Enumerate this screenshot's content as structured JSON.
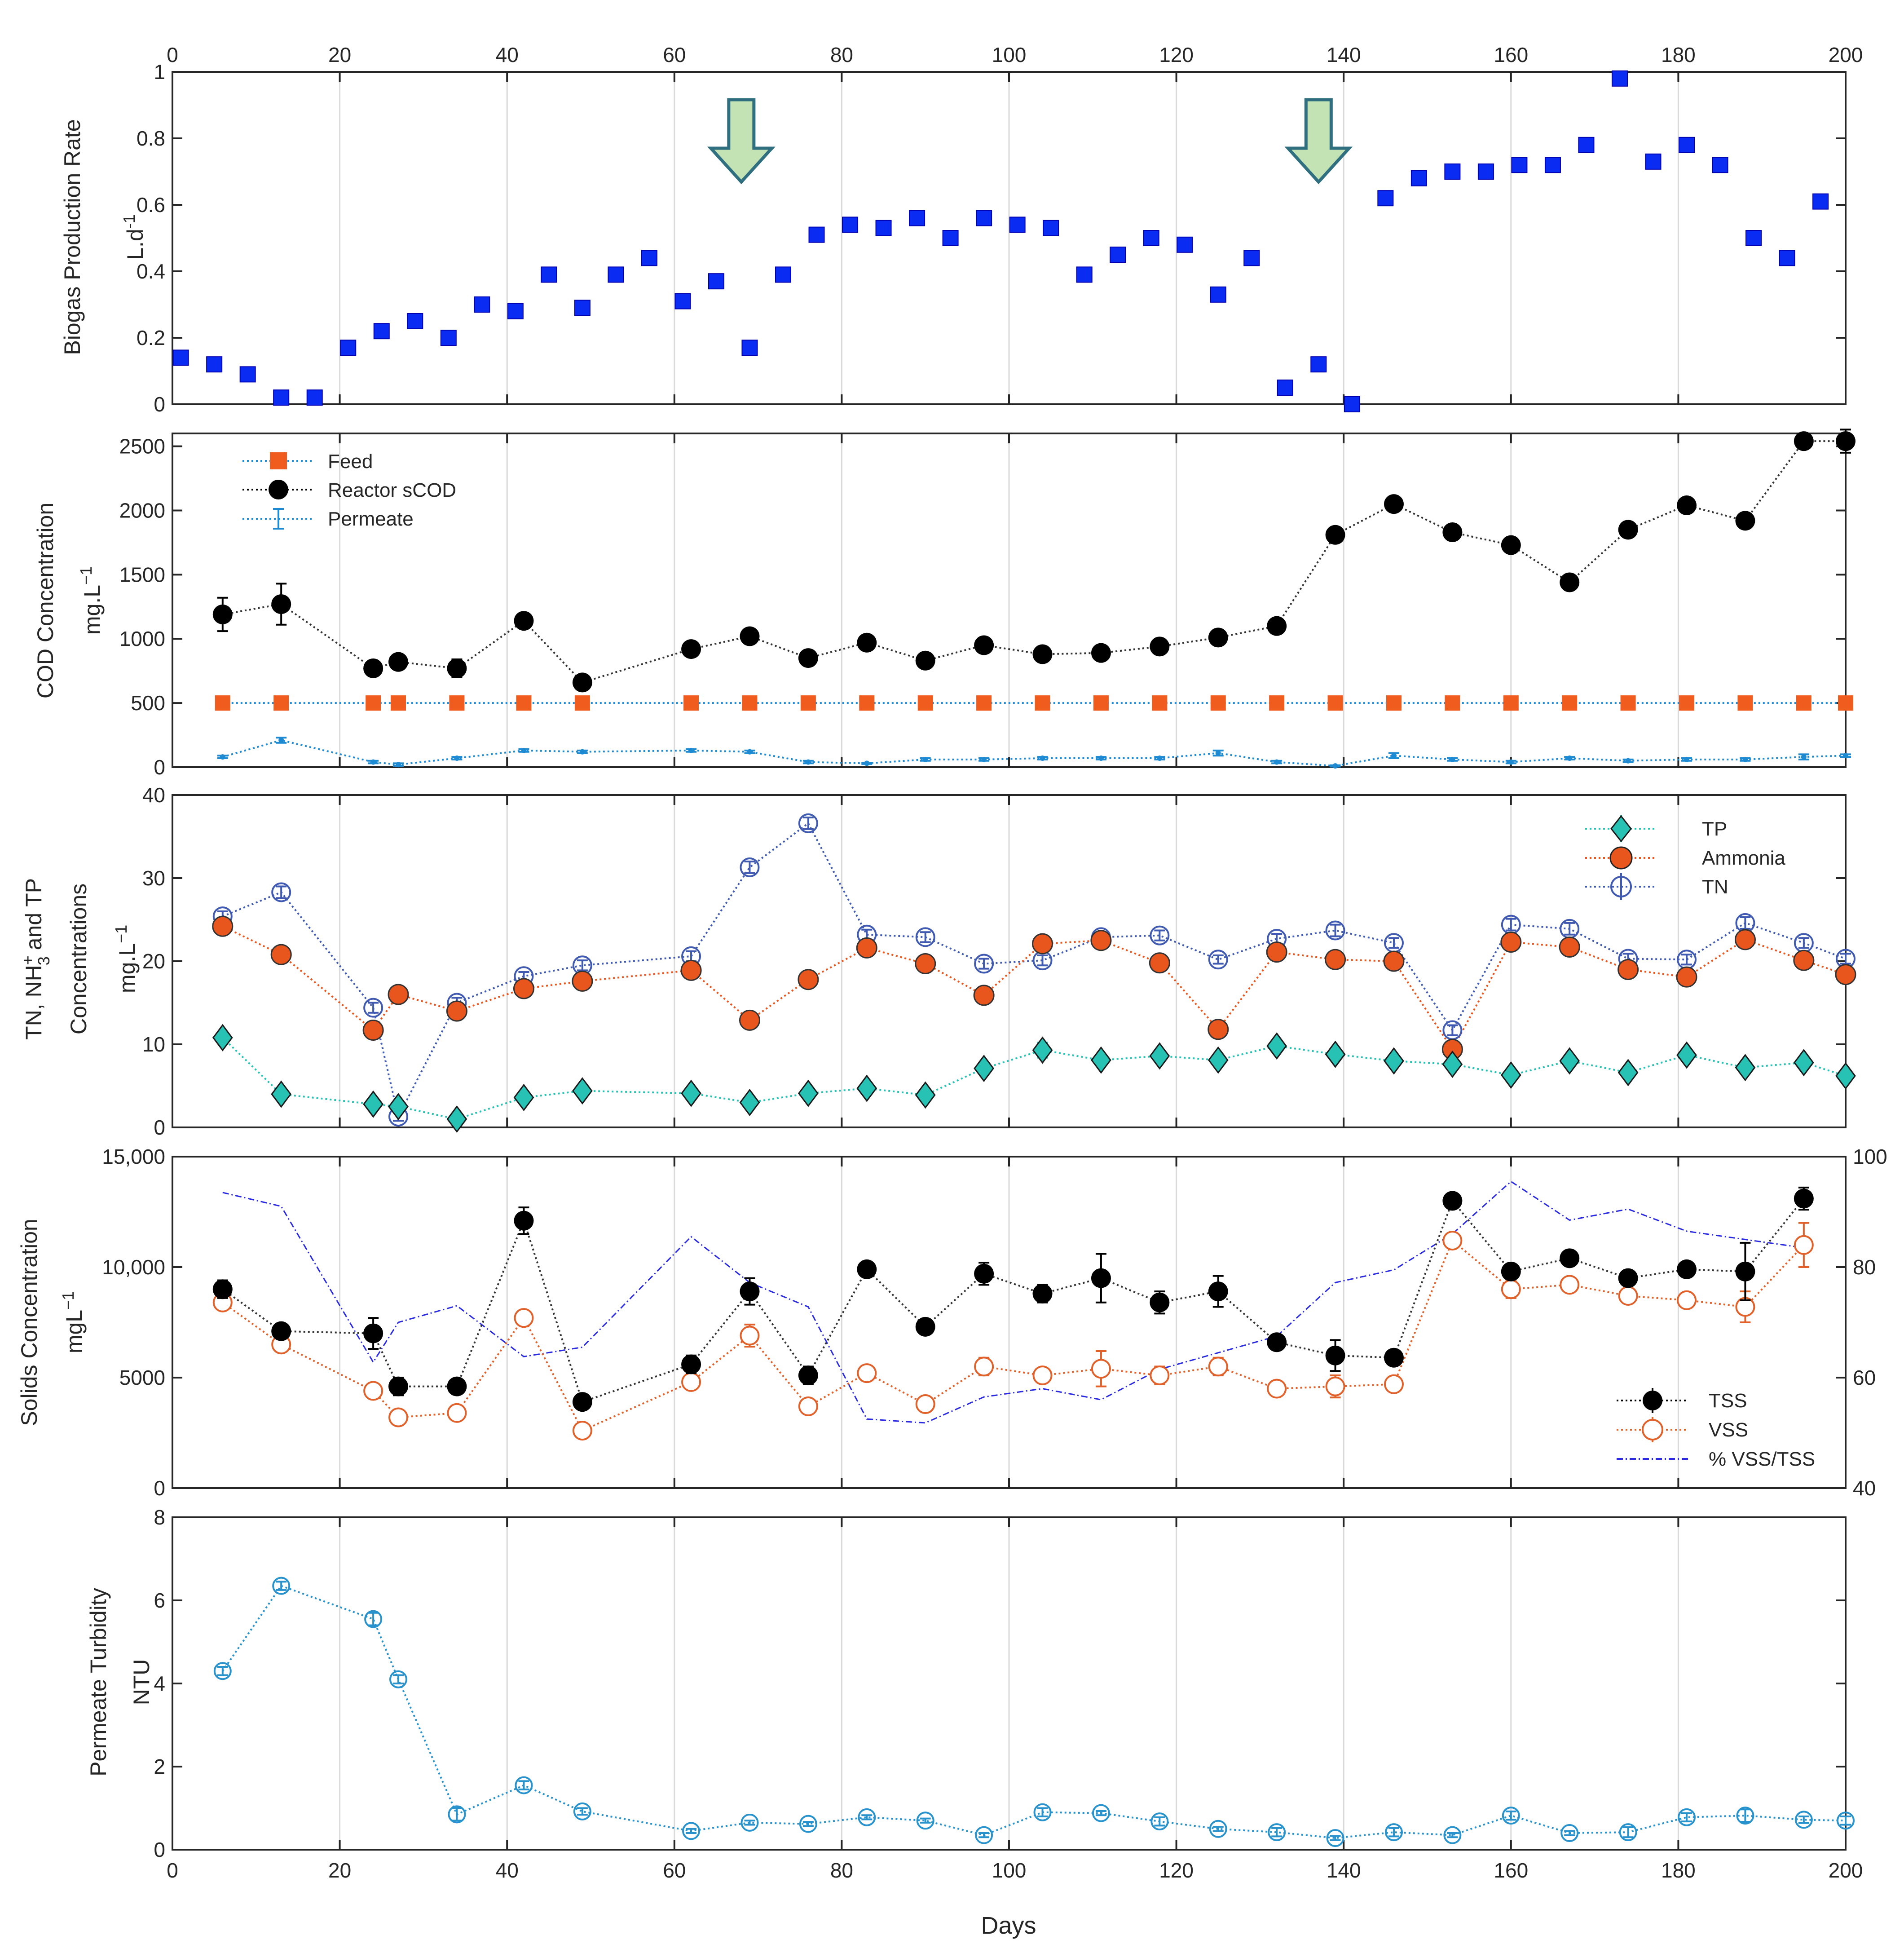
{
  "chart_data": [
    {
      "id": "biogas",
      "type": "scatter",
      "ylabel_line1": "Biogas Production Rate",
      "ylabel_line2_base": "L.d",
      "ylabel_line2_sup": "-1",
      "xlim": [
        0,
        200
      ],
      "ylim": [
        0,
        1
      ],
      "x_ticks": [
        "0",
        "20",
        "40",
        "60",
        "80",
        "100",
        "120",
        "140",
        "160",
        "180",
        "200"
      ],
      "y_ticks": [
        "0",
        "0.2",
        "0.4",
        "0.6",
        "0.8",
        "1"
      ],
      "annotations": [
        {
          "type": "arrow-down",
          "x": 68,
          "color": "#c3e3b5"
        },
        {
          "type": "arrow-down",
          "x": 137,
          "color": "#c3e3b5"
        }
      ],
      "series": [
        {
          "name": "Biogas",
          "color": "#0a2bf2",
          "x": [
            1,
            5,
            9,
            13,
            17,
            21,
            25,
            29,
            33,
            37,
            41,
            45,
            49,
            53,
            57,
            61,
            65,
            69,
            73,
            77,
            81,
            85,
            89,
            93,
            97,
            101,
            105,
            109,
            113,
            117,
            121,
            125,
            129,
            133,
            137,
            141,
            145,
            149,
            153,
            157,
            161,
            165,
            169,
            173,
            177,
            181,
            185,
            189,
            193,
            197
          ],
          "y": [
            0.14,
            0.12,
            0.09,
            0.02,
            0.02,
            0.17,
            0.22,
            0.25,
            0.2,
            0.3,
            0.28,
            0.39,
            0.29,
            0.39,
            0.44,
            0.31,
            0.37,
            0.17,
            0.39,
            0.51,
            0.54,
            0.53,
            0.56,
            0.5,
            0.56,
            0.54,
            0.53,
            0.39,
            0.45,
            0.5,
            0.48,
            0.33,
            0.44,
            0.05,
            0.12,
            0.0,
            0.62,
            0.68,
            0.7,
            0.7,
            0.72,
            0.72,
            0.78,
            0.98,
            0.73,
            0.78,
            0.72,
            0.5,
            0.44,
            0.61
          ]
        }
      ]
    },
    {
      "id": "cod",
      "type": "line",
      "ylabel_line1": "COD Concentration",
      "ylabel_line2_base": "mg.L",
      "ylabel_line2_sup": "−1",
      "xlim": [
        0,
        200
      ],
      "ylim": [
        0,
        2600
      ],
      "y_ticks": [
        "0",
        "500",
        "1000",
        "1500",
        "2000",
        "2500"
      ],
      "legend": [
        "Feed",
        "Reactor sCOD",
        "Permeate"
      ],
      "series": [
        {
          "name": "Feed",
          "color": "#f05c1e",
          "x": [
            6,
            13,
            24,
            27,
            34,
            42,
            49,
            62,
            69,
            76,
            83,
            90,
            97,
            104,
            111,
            118,
            125,
            132,
            139,
            146,
            153,
            160,
            167,
            174,
            181,
            188,
            195,
            200
          ],
          "y": [
            500,
            500,
            500,
            500,
            500,
            500,
            500,
            500,
            500,
            500,
            500,
            500,
            500,
            500,
            500,
            500,
            500,
            500,
            500,
            500,
            500,
            500,
            500,
            500,
            500,
            500,
            500,
            500
          ]
        },
        {
          "name": "Reactor sCOD",
          "color": "#000000",
          "x": [
            6,
            13,
            24,
            27,
            34,
            42,
            49,
            62,
            69,
            76,
            83,
            90,
            97,
            104,
            111,
            118,
            125,
            132,
            139,
            146,
            153,
            160,
            167,
            174,
            181,
            188,
            195,
            200
          ],
          "y": [
            1190,
            1270,
            770,
            820,
            770,
            1140,
            660,
            920,
            1020,
            850,
            970,
            830,
            950,
            880,
            890,
            940,
            1010,
            1100,
            1810,
            2050,
            1830,
            1730,
            1440,
            1850,
            2040,
            1920,
            2540,
            2540
          ],
          "err": [
            130,
            160,
            40,
            50,
            70,
            40,
            30,
            30,
            40,
            30,
            40,
            30,
            30,
            30,
            30,
            30,
            30,
            30,
            40,
            40,
            30,
            30,
            40,
            40,
            40,
            30,
            60,
            90
          ]
        },
        {
          "name": "Permeate",
          "color": "#1e8ad2",
          "x": [
            6,
            13,
            24,
            27,
            34,
            42,
            49,
            62,
            69,
            76,
            83,
            90,
            97,
            104,
            111,
            118,
            125,
            132,
            139,
            146,
            153,
            160,
            167,
            174,
            181,
            188,
            195,
            200
          ],
          "y": [
            80,
            210,
            40,
            20,
            70,
            130,
            120,
            130,
            120,
            40,
            30,
            60,
            60,
            70,
            70,
            70,
            110,
            40,
            10,
            90,
            60,
            40,
            70,
            50,
            60,
            60,
            80,
            90
          ],
          "err": [
            10,
            20,
            10,
            10,
            10,
            10,
            10,
            10,
            10,
            10,
            5,
            10,
            10,
            10,
            10,
            10,
            20,
            10,
            5,
            20,
            10,
            10,
            10,
            10,
            10,
            10,
            20,
            10
          ]
        }
      ]
    },
    {
      "id": "nutrients",
      "type": "line",
      "ylabel_line1_a": "TN, NH",
      "ylabel_line1_sub": "3",
      "ylabel_line1_sup": "+",
      "ylabel_line1_b": "and TP",
      "ylabel_line2": "Concentrations",
      "ylabel_line3_base": "mg.L",
      "ylabel_line3_sup": "−1",
      "xlim": [
        0,
        200
      ],
      "ylim": [
        0,
        40
      ],
      "y_ticks": [
        "0",
        "10",
        "20",
        "30",
        "40"
      ],
      "legend": [
        "TP",
        "Ammonia",
        "TN"
      ],
      "series": [
        {
          "name": "TP",
          "color": "#27c2b4",
          "x": [
            6,
            13,
            24,
            27,
            34,
            42,
            49,
            62,
            69,
            76,
            83,
            90,
            97,
            104,
            111,
            118,
            125,
            132,
            139,
            146,
            153,
            160,
            167,
            174,
            181,
            188,
            195,
            200
          ],
          "y": [
            10.8,
            4.0,
            2.8,
            2.5,
            1.0,
            3.6,
            4.4,
            4.1,
            3.0,
            4.1,
            4.7,
            3.9,
            7.1,
            9.3,
            8.1,
            8.6,
            8.1,
            9.8,
            8.8,
            8.0,
            7.6,
            6.3,
            8.0,
            6.6,
            8.7,
            7.2,
            7.8,
            6.2
          ],
          "err": [
            0.5,
            0.4,
            0.3,
            0.3,
            0.2,
            0.5,
            0.4,
            0.3,
            0.3,
            0.3,
            0.4,
            0.3,
            0.5,
            0.9,
            0.5,
            0.4,
            0.5,
            0.5,
            0.4,
            0.5,
            0.6,
            0.4,
            0.5,
            0.4,
            0.5,
            0.4,
            0.5,
            0.4
          ]
        },
        {
          "name": "Ammonia",
          "color": "#e8561e",
          "x": [
            6,
            13,
            24,
            27,
            34,
            42,
            49,
            62,
            69,
            76,
            83,
            90,
            97,
            104,
            111,
            118,
            125,
            132,
            139,
            146,
            153,
            160,
            167,
            174,
            181,
            188,
            195,
            200
          ],
          "y": [
            24.2,
            20.8,
            11.7,
            16.0,
            14.0,
            16.7,
            17.6,
            18.9,
            12.9,
            17.8,
            21.6,
            19.7,
            15.9,
            22.1,
            22.5,
            19.8,
            11.8,
            21.1,
            20.2,
            20.0,
            9.4,
            22.3,
            21.7,
            19.0,
            18.1,
            22.6,
            20.1,
            18.4
          ]
        },
        {
          "name": "TN",
          "color": "#3f5ab0",
          "x": [
            6,
            13,
            24,
            27,
            34,
            42,
            49,
            62,
            69,
            76,
            83,
            90,
            97,
            104,
            111,
            118,
            125,
            132,
            139,
            146,
            153,
            160,
            167,
            174,
            181,
            188,
            195,
            200
          ],
          "y": [
            25.4,
            28.3,
            14.4,
            1.3,
            15.0,
            18.2,
            19.5,
            20.6,
            31.3,
            36.6,
            23.2,
            22.9,
            19.7,
            20.1,
            22.9,
            23.1,
            20.2,
            22.7,
            23.7,
            22.2,
            11.7,
            24.4,
            23.9,
            20.3,
            20.2,
            24.6,
            22.2,
            20.3
          ],
          "err": [
            0.6,
            0.7,
            0.6,
            0.5,
            0.6,
            0.5,
            0.6,
            0.6,
            0.7,
            0.7,
            0.6,
            0.6,
            0.6,
            0.6,
            0.6,
            0.6,
            0.5,
            0.6,
            0.7,
            0.6,
            0.6,
            0.7,
            0.7,
            0.6,
            0.6,
            0.7,
            0.6,
            0.6
          ]
        }
      ]
    },
    {
      "id": "solids",
      "type": "line",
      "ylabel_line1": "Solids Concentration",
      "ylabel_line2_base": "mgL",
      "ylabel_line2_sup": "−1",
      "xlim": [
        0,
        200
      ],
      "ylim": [
        0,
        15000
      ],
      "y2lim": [
        40,
        100
      ],
      "y_ticks": [
        "0",
        "5000",
        "10,000",
        "15,000"
      ],
      "y2_ticks": [
        "40",
        "60",
        "80",
        "100"
      ],
      "legend": [
        "TSS",
        "VSS",
        "% VSS/TSS"
      ],
      "series": [
        {
          "name": "TSS",
          "color": "#000000",
          "x": [
            6,
            13,
            24,
            27,
            34,
            42,
            49,
            62,
            69,
            76,
            83,
            90,
            97,
            104,
            111,
            118,
            125,
            132,
            139,
            146,
            153,
            160,
            167,
            174,
            181,
            188,
            195
          ],
          "y": [
            9000,
            7100,
            7000,
            4600,
            4600,
            12100,
            3900,
            5600,
            8900,
            5100,
            9900,
            7300,
            9700,
            8800,
            9500,
            8400,
            8900,
            6600,
            6000,
            5900,
            13000,
            9800,
            10400,
            9500,
            9900,
            9800,
            13100
          ],
          "err": [
            400,
            200,
            700,
            400,
            200,
            600,
            200,
            400,
            600,
            400,
            200,
            200,
            500,
            400,
            1100,
            500,
            700,
            200,
            700,
            200,
            200,
            300,
            200,
            300,
            200,
            1300,
            500
          ]
        },
        {
          "name": "VSS",
          "color": "#e0612a",
          "x": [
            6,
            13,
            24,
            27,
            34,
            42,
            49,
            62,
            69,
            76,
            83,
            90,
            97,
            104,
            111,
            118,
            125,
            132,
            139,
            146,
            153,
            160,
            167,
            174,
            181,
            188,
            195
          ],
          "y": [
            8400,
            6500,
            4400,
            3200,
            3400,
            7700,
            2600,
            4800,
            6900,
            3700,
            5200,
            3800,
            5500,
            5100,
            5400,
            5100,
            5500,
            4500,
            4600,
            4700,
            11200,
            9000,
            9200,
            8700,
            8500,
            8200,
            11000
          ],
          "err": [
            300,
            200,
            300,
            200,
            200,
            200,
            200,
            300,
            500,
            200,
            200,
            200,
            400,
            300,
            800,
            400,
            400,
            200,
            500,
            300,
            300,
            400,
            300,
            300,
            200,
            700,
            1000
          ]
        },
        {
          "name": "% VSS/TSS",
          "color": "#2a2ae0",
          "axis": "right",
          "x": [
            6,
            13,
            24,
            27,
            34,
            42,
            49,
            62,
            69,
            76,
            83,
            90,
            97,
            104,
            111,
            118,
            125,
            132,
            139,
            146,
            153,
            160,
            167,
            174,
            181,
            188,
            195
          ],
          "y": [
            93.5,
            91.0,
            62.8,
            70.0,
            73.0,
            63.8,
            65.5,
            85.5,
            77.2,
            72.8,
            52.5,
            51.8,
            56.5,
            58.0,
            56.0,
            61.5,
            64.5,
            67.5,
            77.2,
            79.5,
            86.0,
            95.5,
            88.5,
            90.5,
            86.5,
            85.0,
            83.5
          ]
        }
      ]
    },
    {
      "id": "turbidity",
      "type": "line",
      "ylabel_line1": "Permeate Turbidity",
      "ylabel_line2": "NTU",
      "xlabel": "Days",
      "xlim": [
        0,
        200
      ],
      "ylim": [
        0,
        8
      ],
      "x_ticks": [
        "0",
        "20",
        "40",
        "60",
        "80",
        "100",
        "120",
        "140",
        "160",
        "180",
        "200"
      ],
      "y_ticks": [
        "0",
        "2",
        "4",
        "6",
        "8"
      ],
      "series": [
        {
          "name": "Permeate Turbidity",
          "color": "#2792cc",
          "x": [
            6,
            13,
            24,
            27,
            34,
            42,
            49,
            62,
            69,
            76,
            83,
            90,
            97,
            104,
            111,
            118,
            125,
            132,
            139,
            146,
            153,
            160,
            167,
            174,
            181,
            188,
            195,
            200
          ],
          "y": [
            4.3,
            6.35,
            5.55,
            4.1,
            0.85,
            1.55,
            0.92,
            0.45,
            0.65,
            0.62,
            0.78,
            0.7,
            0.35,
            0.9,
            0.88,
            0.68,
            0.5,
            0.42,
            0.28,
            0.42,
            0.35,
            0.82,
            0.4,
            0.42,
            0.78,
            0.82,
            0.72,
            0.7
          ],
          "err": [
            0.1,
            0.1,
            0.15,
            0.1,
            0.15,
            0.1,
            0.08,
            0.05,
            0.05,
            0.05,
            0.05,
            0.05,
            0.05,
            0.1,
            0.05,
            0.1,
            0.05,
            0.1,
            0.05,
            0.1,
            0.05,
            0.1,
            0.05,
            0.12,
            0.1,
            0.15,
            0.08,
            0.1
          ]
        }
      ]
    }
  ]
}
